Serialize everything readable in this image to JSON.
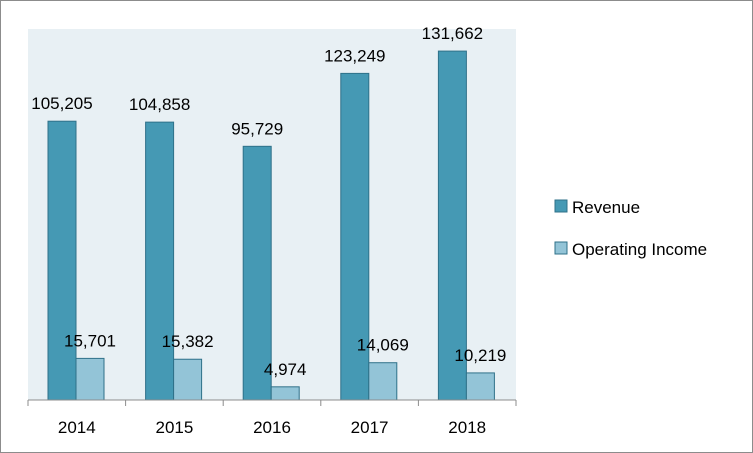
{
  "chart_data": {
    "type": "bar",
    "categories": [
      "2014",
      "2015",
      "2016",
      "2017",
      "2018"
    ],
    "series": [
      {
        "name": "Revenue",
        "values": [
          105205,
          104858,
          95729,
          123249,
          131662
        ],
        "labels": [
          "105,205",
          "104,858",
          "95,729",
          "123,249",
          "131,662"
        ],
        "color": "#4599b4"
      },
      {
        "name": "Operating Income",
        "values": [
          15701,
          15382,
          4974,
          14069,
          10219
        ],
        "labels": [
          "15,701",
          "15,382",
          "4,974",
          "14,069",
          "10,219"
        ],
        "color": "#93c4d7"
      }
    ],
    "title": "",
    "xlabel": "",
    "ylabel": "",
    "ylim": [
      0,
      140000
    ],
    "plot_background": "#e8f0f4",
    "legend_position": "right",
    "grid": false
  }
}
